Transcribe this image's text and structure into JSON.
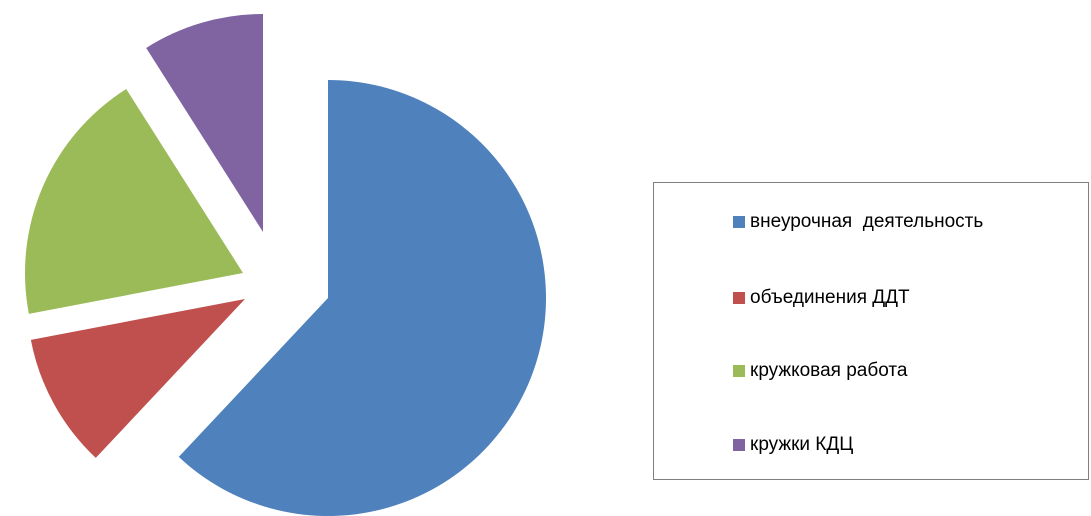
{
  "chart_data": {
    "type": "pie",
    "exploded": true,
    "start_angle_deg": 0,
    "direction": "clockwise",
    "legend_position": "right",
    "slices": [
      {
        "label": "внеурочная  деятельность",
        "value": 62,
        "color": "#4F81BD"
      },
      {
        "label": "объединения ДДТ",
        "value": 10,
        "color": "#C0504D"
      },
      {
        "label": "кружковая работа",
        "value": 19,
        "color": "#9BBB59"
      },
      {
        "label": "кружки КДЦ",
        "value": 9,
        "color": "#8064A2"
      }
    ]
  }
}
